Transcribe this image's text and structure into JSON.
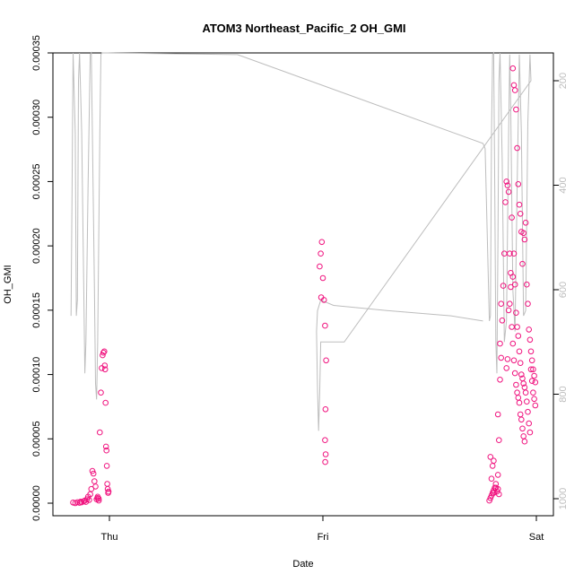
{
  "chart_data": {
    "type": "scatter",
    "title": "ATOM3 Northeast_Pacific_2 OH_GMI",
    "xlabel": "Date",
    "ylabel": "OH_GMI",
    "x_ticks": [
      "Thu",
      "Fri",
      "Sat"
    ],
    "ylim": [
      0,
      0.00035
    ],
    "y_ticks": [
      "0.00000",
      "0.00005",
      "0.00010",
      "0.00015",
      "0.00020",
      "0.00025",
      "0.00030",
      "0.00035"
    ],
    "y2_ticks": [
      "200",
      "400",
      "600",
      "800",
      "1000"
    ],
    "y2_range": [
      160,
      1040
    ],
    "grid": false,
    "colors": {
      "points": "#f0147f",
      "altitude_line": "#bdbdbd",
      "axis": "#000000"
    },
    "series": [
      {
        "kind": "points",
        "values": [
          [
            -0.17,
            5e-07
          ],
          [
            -0.16,
            0.0
          ],
          [
            -0.15,
            8e-07
          ],
          [
            -0.14,
            3e-07
          ],
          [
            -0.135,
            1.2e-06
          ],
          [
            -0.13,
            6e-07
          ],
          [
            -0.12,
            1.5e-06
          ],
          [
            -0.115,
            2e-06
          ],
          [
            -0.11,
            1e-06
          ],
          [
            -0.105,
            3e-06
          ],
          [
            -0.1,
            5e-06
          ],
          [
            -0.095,
            2.5e-06
          ],
          [
            -0.09,
            7e-06
          ],
          [
            -0.085,
            1.1e-05
          ],
          [
            -0.08,
            2.5e-05
          ],
          [
            -0.075,
            2.3e-05
          ],
          [
            -0.07,
            1.7e-05
          ],
          [
            -0.065,
            1.3e-05
          ],
          [
            -0.06,
            3e-06
          ],
          [
            -0.055,
            5e-06
          ],
          [
            -0.05,
            2e-06
          ],
          [
            -0.045,
            5.5e-05
          ],
          [
            -0.04,
            8.6e-05
          ],
          [
            -0.036,
            0.000105
          ],
          [
            -0.032,
            0.000115
          ],
          [
            -0.028,
            0.000117
          ],
          [
            -0.024,
            0.000118
          ],
          [
            -0.022,
            0.000107
          ],
          [
            -0.02,
            0.000104
          ],
          [
            -0.018,
            7.8e-05
          ],
          [
            -0.016,
            4.4e-05
          ],
          [
            -0.014,
            4.1e-05
          ],
          [
            -0.012,
            2.9e-05
          ],
          [
            -0.01,
            1.5e-05
          ],
          [
            -0.008,
            1.1e-05
          ],
          [
            -0.006,
            8e-06
          ],
          [
            -0.004,
            9e-06
          ],
          [
            -0.056,
            4e-06
          ],
          [
            -0.05,
            3.5e-06
          ],
          [
            0.995,
            0.000203
          ],
          [
            0.99,
            0.000194
          ],
          [
            0.985,
            0.000184
          ],
          [
            1.0,
            0.000175
          ],
          [
            0.992,
            0.00016
          ],
          [
            1.005,
            0.000158
          ],
          [
            1.01,
            0.000138
          ],
          [
            1.015,
            0.000111
          ],
          [
            1.012,
            7.3e-05
          ],
          [
            1.01,
            4.9e-05
          ],
          [
            1.013,
            3.8e-05
          ],
          [
            1.011,
            3.2e-05
          ],
          [
            1.78,
            2e-06
          ],
          [
            1.785,
            4e-06
          ],
          [
            1.79,
            6e-06
          ],
          [
            1.795,
            8e-06
          ],
          [
            1.8,
            1e-05
          ],
          [
            1.805,
            1.2e-05
          ],
          [
            1.81,
            1.5e-05
          ],
          [
            1.79,
            1.9e-05
          ],
          [
            1.795,
            2.9e-05
          ],
          [
            1.8,
            3.3e-05
          ],
          [
            1.785,
            3.6e-05
          ],
          [
            1.82,
            2.2e-05
          ],
          [
            1.825,
            4.9e-05
          ],
          [
            1.82,
            6.9e-05
          ],
          [
            1.83,
            9.6e-05
          ],
          [
            1.835,
            0.000113
          ],
          [
            1.83,
            0.000124
          ],
          [
            1.84,
            0.000142
          ],
          [
            1.835,
            0.000155
          ],
          [
            1.845,
            0.000169
          ],
          [
            1.85,
            0.000194
          ],
          [
            1.855,
            0.000234
          ],
          [
            1.86,
            0.00025
          ],
          [
            1.865,
            0.000247
          ],
          [
            1.87,
            0.000242
          ],
          [
            1.875,
            0.000194
          ],
          [
            1.88,
            0.000168
          ],
          [
            1.885,
            0.000137
          ],
          [
            1.89,
            0.000124
          ],
          [
            1.895,
            0.000111
          ],
          [
            1.9,
            0.000101
          ],
          [
            1.905,
            9.2e-05
          ],
          [
            1.91,
            8.6e-05
          ],
          [
            1.915,
            8.2e-05
          ],
          [
            1.92,
            7.8e-05
          ],
          [
            1.925,
            6.9e-05
          ],
          [
            1.93,
            6.5e-05
          ],
          [
            1.935,
            5.8e-05
          ],
          [
            1.94,
            5.2e-05
          ],
          [
            1.945,
            4.8e-05
          ],
          [
            1.86,
            0.000105
          ],
          [
            1.865,
            0.000112
          ],
          [
            1.87,
            0.00015
          ],
          [
            1.875,
            0.000155
          ],
          [
            1.88,
            0.000179
          ],
          [
            1.885,
            0.000222
          ],
          [
            1.89,
            0.000176
          ],
          [
            1.895,
            0.000194
          ],
          [
            1.9,
            0.00017
          ],
          [
            1.905,
            0.000148
          ],
          [
            1.91,
            0.000137
          ],
          [
            1.915,
            0.00013
          ],
          [
            1.92,
            0.000118
          ],
          [
            1.925,
            0.000109
          ],
          [
            1.93,
            0.0001
          ],
          [
            1.935,
            9.7e-05
          ],
          [
            1.94,
            9.3e-05
          ],
          [
            1.945,
            9e-05
          ],
          [
            1.95,
            8.6e-05
          ],
          [
            1.955,
            7.9e-05
          ],
          [
            1.96,
            7.1e-05
          ],
          [
            1.965,
            6.2e-05
          ],
          [
            1.97,
            5.5e-05
          ],
          [
            1.975,
            0.000104
          ],
          [
            1.98,
            9.5e-05
          ],
          [
            1.985,
            8.6e-05
          ],
          [
            1.99,
            8.1e-05
          ],
          [
            1.995,
            7.6e-05
          ],
          [
            1.94,
            0.00021
          ],
          [
            1.945,
            0.000205
          ],
          [
            1.95,
            0.000218
          ],
          [
            1.955,
            0.00017
          ],
          [
            1.96,
            0.000155
          ],
          [
            1.965,
            0.000135
          ],
          [
            1.97,
            0.000127
          ],
          [
            1.975,
            0.000118
          ],
          [
            1.98,
            0.000111
          ],
          [
            1.985,
            0.000104
          ],
          [
            1.99,
            9.9e-05
          ],
          [
            1.995,
            9.4e-05
          ],
          [
            1.89,
            0.000338
          ],
          [
            1.895,
            0.000325
          ],
          [
            1.9,
            0.000321
          ],
          [
            1.905,
            0.000306
          ],
          [
            1.91,
            0.000276
          ],
          [
            1.915,
            0.000248
          ],
          [
            1.92,
            0.000232
          ],
          [
            1.925,
            0.000225
          ],
          [
            1.93,
            0.000211
          ],
          [
            1.935,
            0.000186
          ],
          [
            1.8,
            8e-06
          ],
          [
            1.81,
            1.2e-05
          ],
          [
            1.815,
            9e-06
          ],
          [
            1.82,
            1.1e-05
          ],
          [
            1.825,
            7e-06
          ]
        ]
      },
      {
        "kind": "altitude_line",
        "values": [
          [
            -0.18,
            650
          ],
          [
            -0.175,
            420
          ],
          [
            -0.17,
            120
          ],
          [
            -0.16,
            300
          ],
          [
            -0.155,
            650
          ],
          [
            -0.15,
            620
          ],
          [
            -0.145,
            200
          ],
          [
            -0.14,
            120
          ],
          [
            -0.13,
            300
          ],
          [
            -0.12,
            600
          ],
          [
            -0.115,
            760
          ],
          [
            -0.11,
            700
          ],
          [
            -0.1,
            400
          ],
          [
            -0.09,
            150
          ],
          [
            -0.085,
            120
          ],
          [
            -0.08,
            300
          ],
          [
            -0.07,
            600
          ],
          [
            -0.065,
            780
          ],
          [
            -0.06,
            810
          ],
          [
            -0.055,
            700
          ],
          [
            -0.05,
            500
          ],
          [
            -0.045,
            300
          ],
          [
            -0.04,
            150
          ],
          [
            -0.035,
            130
          ],
          [
            -0.01,
            130
          ],
          [
            0.6,
            150
          ],
          [
            1.75,
            320
          ],
          [
            1.76,
            330
          ],
          [
            1.78,
            660
          ],
          [
            1.785,
            650
          ],
          [
            1.79,
            300
          ],
          [
            1.795,
            150
          ],
          [
            1.8,
            120
          ],
          [
            1.805,
            400
          ],
          [
            1.81,
            700
          ],
          [
            1.815,
            760
          ],
          [
            1.82,
            500
          ],
          [
            1.825,
            200
          ],
          [
            1.83,
            130
          ],
          [
            1.84,
            350
          ],
          [
            1.85,
            700
          ],
          [
            1.86,
            660
          ],
          [
            1.87,
            300
          ],
          [
            1.875,
            150
          ],
          [
            1.88,
            250
          ],
          [
            1.89,
            600
          ],
          [
            1.9,
            680
          ],
          [
            1.91,
            400
          ],
          [
            1.92,
            150
          ],
          [
            1.93,
            300
          ],
          [
            1.94,
            650
          ],
          [
            1.95,
            640
          ],
          [
            1.96,
            280
          ],
          [
            1.97,
            150
          ],
          [
            1.975,
            200
          ],
          [
            1.1,
            700
          ],
          [
            0.99,
            700
          ],
          [
            0.985,
            800
          ],
          [
            0.98,
            870
          ],
          [
            0.975,
            790
          ],
          [
            0.97,
            680
          ],
          [
            0.975,
            640
          ],
          [
            0.99,
            620
          ],
          [
            1.05,
            630
          ],
          [
            1.3,
            640
          ],
          [
            1.6,
            650
          ],
          [
            1.75,
            660
          ]
        ]
      }
    ]
  }
}
